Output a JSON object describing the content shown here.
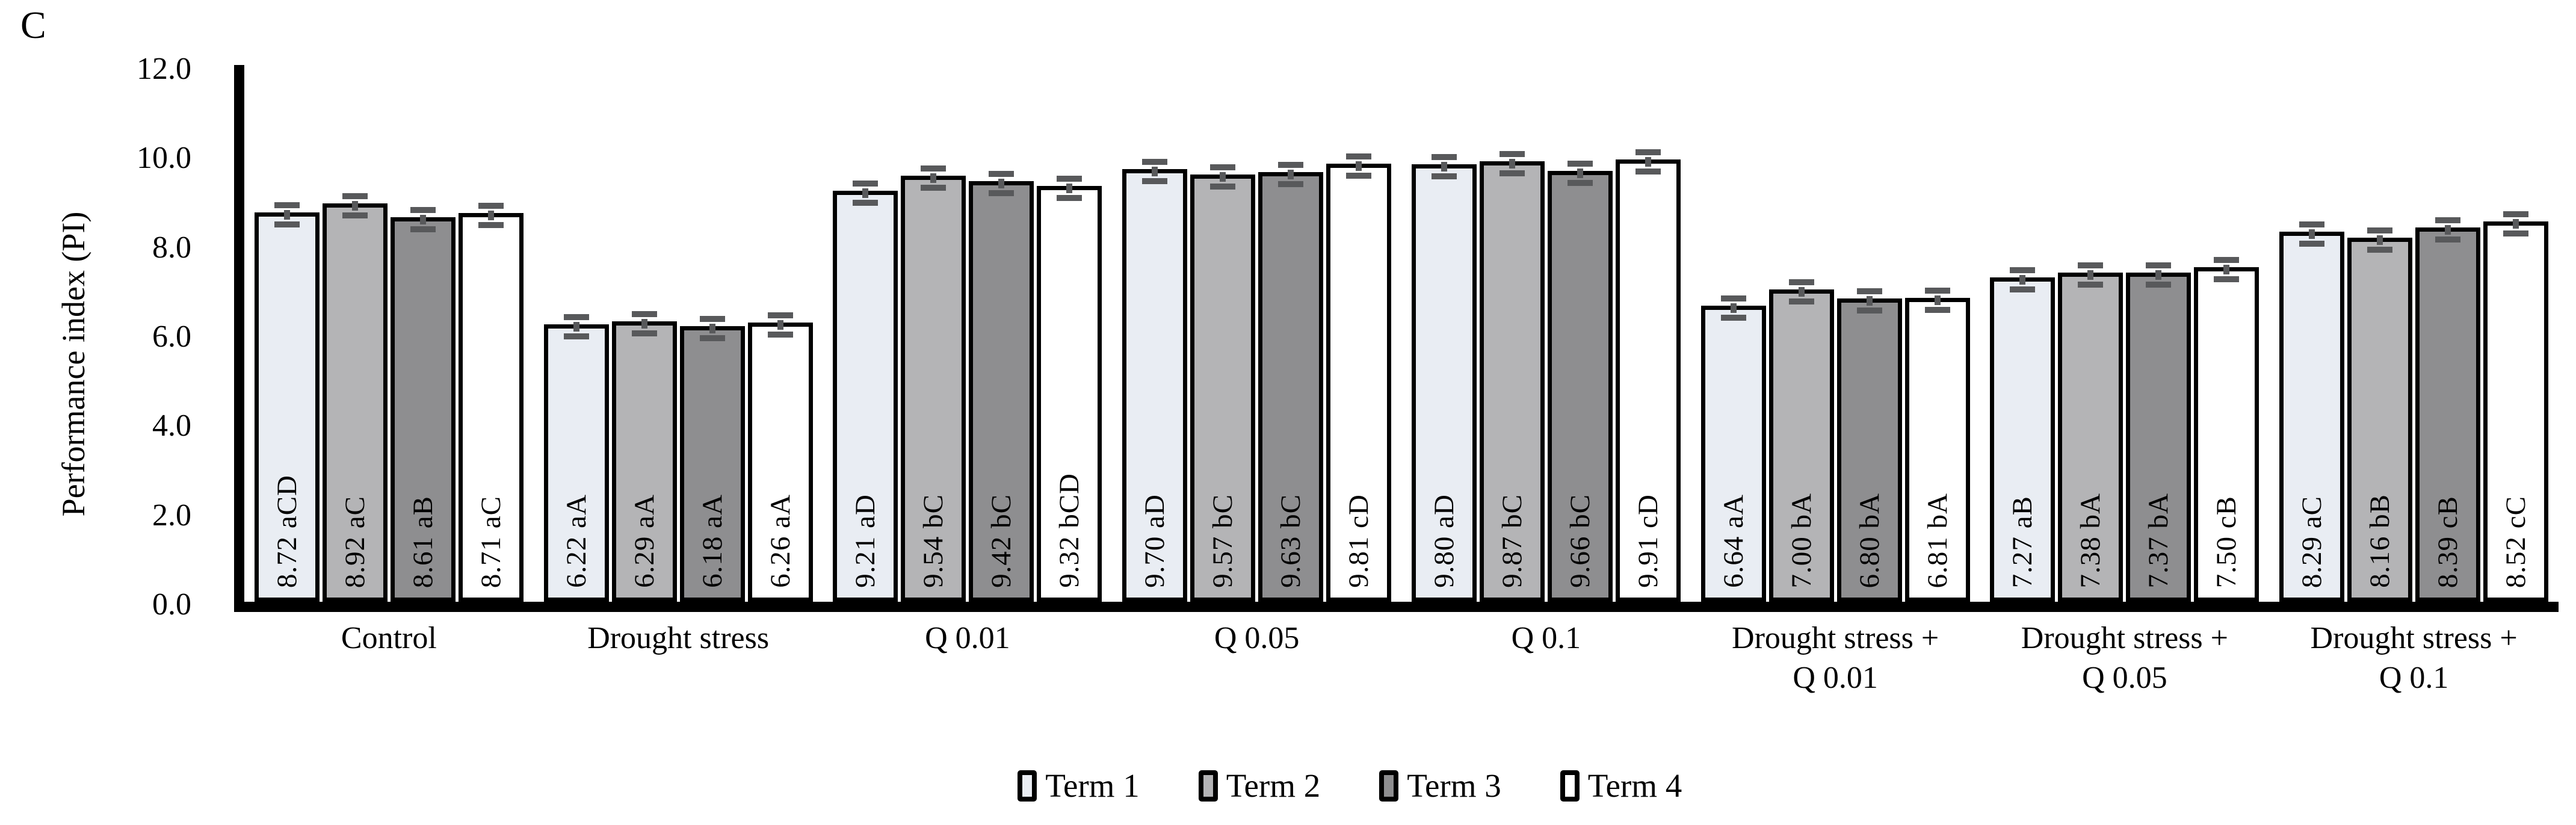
{
  "panel_label": "C",
  "chart_data": {
    "type": "bar",
    "title": "",
    "xlabel": "",
    "ylabel": "Performance index (PI)",
    "ylim": [
      0,
      12
    ],
    "ytick_step": 2,
    "yticks": [
      "0.0",
      "2.0",
      "4.0",
      "6.0",
      "8.0",
      "10.0",
      "12.0"
    ],
    "grid": false,
    "legend_position": "bottom",
    "categories": [
      "Control",
      "Drought stress",
      "Q 0.01",
      "Q 0.05",
      "Q 0.1",
      "Drought stress +\nQ 0.01",
      "Drought stress +\nQ 0.05",
      "Drought stress +\nQ 0.1"
    ],
    "series": [
      {
        "name": "Term 1",
        "color": "#e9edf3",
        "values": [
          8.72,
          6.22,
          9.21,
          9.7,
          9.8,
          6.64,
          7.27,
          8.29
        ],
        "bar_labels": [
          "8.72 aCD",
          "6.22 aA",
          "9.21 aD",
          "9.70 aD",
          "9.80 aD",
          "6.64 aA",
          "7.27 aB",
          "8.29 aC"
        ]
      },
      {
        "name": "Term 2",
        "color": "#b4b4b6",
        "values": [
          8.92,
          6.29,
          9.54,
          9.57,
          9.87,
          7.0,
          7.38,
          8.16
        ],
        "bar_labels": [
          "8.92 aC",
          "6.29 aA",
          "9.54 bC",
          "9.57 bC",
          "9.87 bC",
          "7.00 bA",
          "7.38 bA",
          "8.16 bB"
        ]
      },
      {
        "name": "Term 3",
        "color": "#8e8e90",
        "values": [
          8.61,
          6.18,
          9.42,
          9.63,
          9.66,
          6.8,
          7.37,
          8.39
        ],
        "bar_labels": [
          "8.61 aB",
          "6.18 aA",
          "9.42 bC",
          "9.63 bC",
          "9.66 bC",
          "6.80 bA",
          "7.37 bA",
          "8.39 cB"
        ]
      },
      {
        "name": "Term 4",
        "color": "#ffffff",
        "values": [
          8.71,
          6.26,
          9.32,
          9.81,
          9.91,
          6.81,
          7.5,
          8.52
        ],
        "bar_labels": [
          "8.71 aC",
          "6.26 aA",
          "9.32 bCD",
          "9.81 cD",
          "9.91 cD",
          "6.81 bA",
          "7.50 cB",
          "8.52 cC"
        ]
      }
    ],
    "error_bars": {
      "shown": true,
      "approx_half_width": 0.1
    },
    "colors": {
      "bar_border": "#000000",
      "error_bar": "#58595b",
      "axis": "#000000",
      "text": "#000000",
      "background": "#ffffff"
    }
  },
  "legend": {
    "items": [
      {
        "label": "Term 1",
        "color": "#e9edf3"
      },
      {
        "label": "Term 2",
        "color": "#b4b4b6"
      },
      {
        "label": "Term 3",
        "color": "#8e8e90"
      },
      {
        "label": "Term 4",
        "color": "#ffffff"
      }
    ]
  }
}
